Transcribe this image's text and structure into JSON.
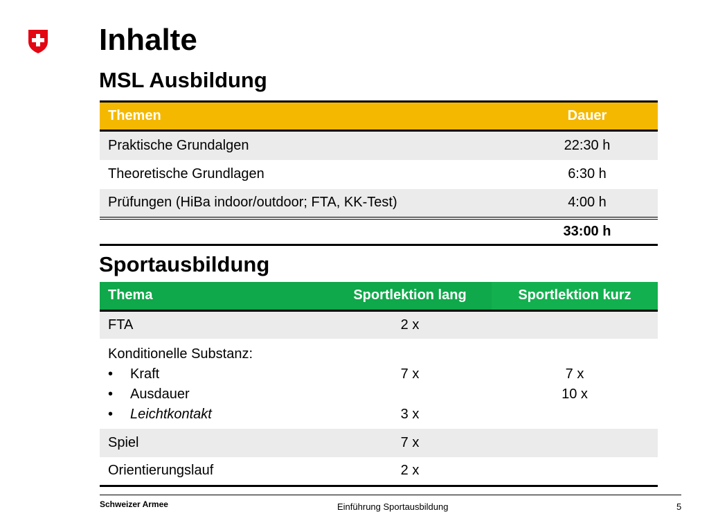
{
  "title": "Inhalte",
  "section1": {
    "heading": "MSL Ausbildung",
    "headers": [
      "Themen",
      "Dauer"
    ],
    "rows": [
      {
        "thema": "Praktische Grundalgen",
        "dauer": "22:30 h"
      },
      {
        "thema": "Theoretische Grundlagen",
        "dauer": "6:30 h"
      },
      {
        "thema": "Prüfungen (HiBa indoor/outdoor; FTA, KK-Test)",
        "dauer": "4:00 h"
      }
    ],
    "total": "33:00 h"
  },
  "section2": {
    "heading": "Sportausbildung",
    "headers": [
      "Thema",
      "Sportlektion lang",
      "Sportlektion kurz"
    ],
    "row_fta": {
      "thema": "FTA",
      "lang": "2 x",
      "kurz": ""
    },
    "row_kondition": {
      "thema": "Konditionelle Substanz:",
      "bullet": "•",
      "items": [
        "Kraft",
        "Ausdauer",
        "Leichtkontakt"
      ],
      "lang": [
        "7 x",
        "",
        "3 x"
      ],
      "kurz": [
        "7 x",
        "10 x",
        ""
      ]
    },
    "row_spiel": {
      "thema": "Spiel",
      "lang": "7 x",
      "kurz": ""
    },
    "row_ol": {
      "thema": "Orientierungslauf",
      "lang": "2 x",
      "kurz": ""
    }
  },
  "footer": {
    "org": "Schweizer Armee",
    "center": "Einführung Sportausbildung",
    "page": "5"
  },
  "colors": {
    "header_yellow": "#f5b800",
    "header_green": "#0fa84a",
    "logo_red": "#e30613",
    "row_shade": "#ebebeb"
  }
}
